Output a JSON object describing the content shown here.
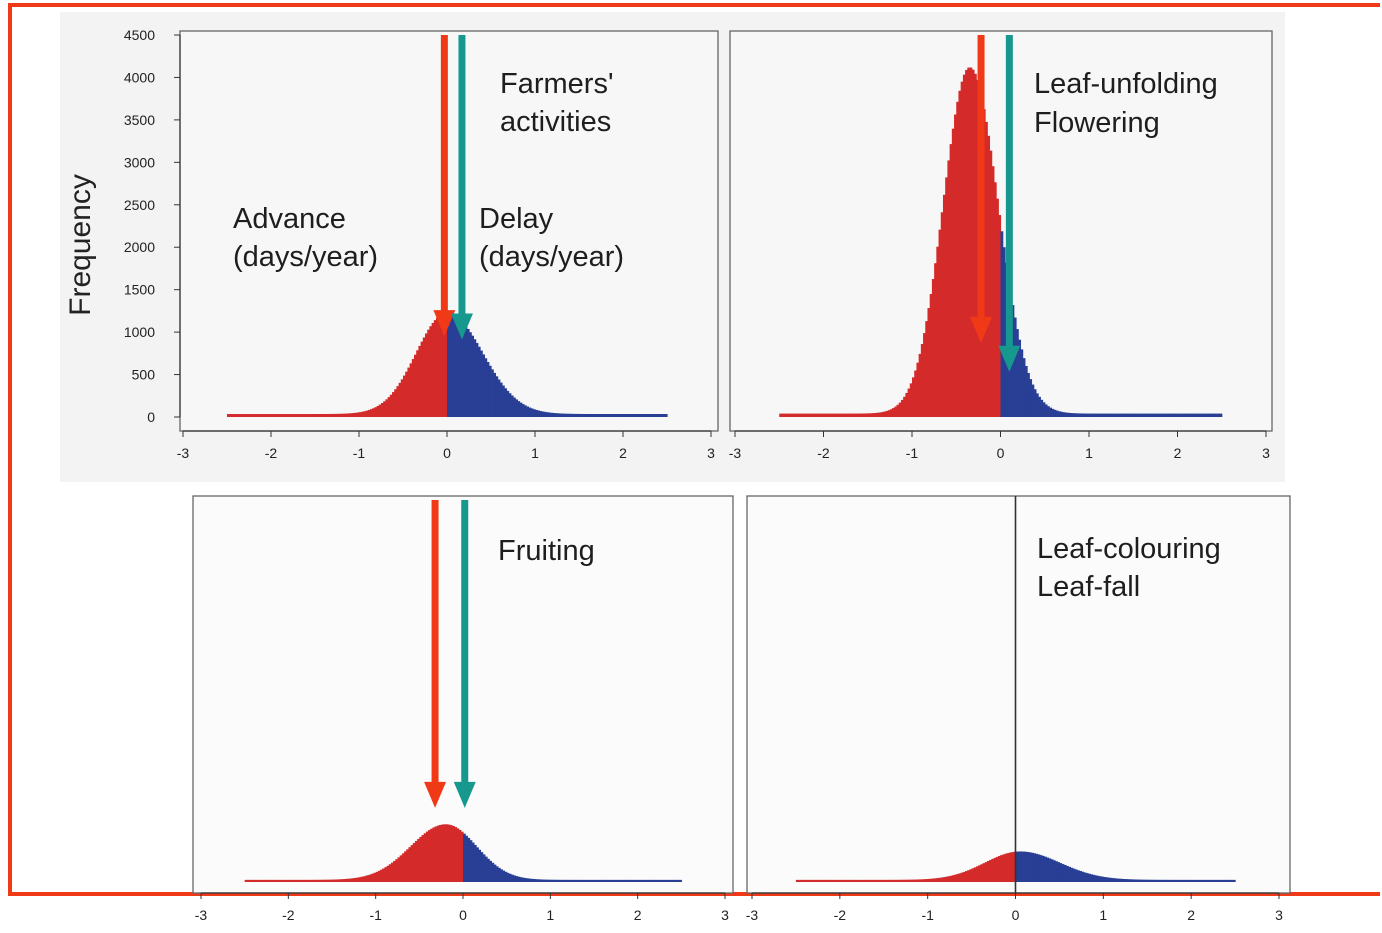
{
  "chart_data": [
    {
      "type": "bar",
      "panel": "top-left",
      "annotations": [
        "Farmers'",
        "activities"
      ],
      "x_ticks": [
        "-3",
        "-2",
        "-1",
        "0",
        "1",
        "2",
        "3"
      ],
      "y_ticks": [
        "0",
        "500",
        "1000",
        "1500",
        "2000",
        "2500",
        "3000",
        "3500",
        "4000",
        "4500"
      ],
      "ylabel": "Frequency",
      "xlim": [
        -3,
        3
      ],
      "ylim": [
        0,
        4500
      ],
      "range": [
        -2.5,
        2.5
      ],
      "peak_x": 0.0,
      "peak_y": 1230,
      "sigma_left": 0.35,
      "sigma_right": 0.4,
      "tail": 35,
      "x": [
        -2.5,
        -2.0,
        -1.5,
        -1.0,
        -0.5,
        -0.25,
        0.0,
        0.25,
        0.5,
        1.0,
        1.5,
        2.0,
        2.5
      ],
      "values": [
        40,
        50,
        80,
        280,
        830,
        1110,
        1230,
        1000,
        630,
        180,
        90,
        60,
        40
      ],
      "series": [
        {
          "name": "Advance (days/year)",
          "range": [
            -2.5,
            0.0
          ],
          "color": "#d42a2a"
        },
        {
          "name": "Delay (days/year)",
          "range": [
            0.0,
            2.5
          ],
          "color": "#283f95"
        }
      ],
      "labels": [
        {
          "lines": [
            "Advance",
            "(days/year)"
          ],
          "x": -2.4,
          "y": 2550
        },
        {
          "lines": [
            "Delay",
            "(days/year)"
          ],
          "x": 0.35,
          "y": 2550
        }
      ],
      "arrows": [
        {
          "x": -0.03,
          "y_from": 4500,
          "y_to": 1000,
          "color": "#f03a17"
        },
        {
          "x": 0.17,
          "y_from": 4500,
          "y_to": 960,
          "color": "#16988f"
        }
      ],
      "zero_line": false
    },
    {
      "type": "bar",
      "panel": "top-right",
      "annotations": [
        "Leaf-unfolding",
        "Flowering"
      ],
      "x_ticks": [
        "-3",
        "-2",
        "-1",
        "0",
        "1",
        "2",
        "3"
      ],
      "xlim": [
        -3,
        3
      ],
      "ylim": [
        0,
        4500
      ],
      "range": [
        -2.5,
        2.5
      ],
      "peak_x": -0.35,
      "peak_y": 4120,
      "sigma_left": 0.3,
      "sigma_right": 0.32,
      "tail": 40,
      "x": [
        -2.5,
        -1.5,
        -1.0,
        -0.6,
        -0.35,
        0.0,
        0.25,
        0.5,
        1.0,
        1.5,
        2.5
      ],
      "values": [
        45,
        100,
        700,
        2850,
        4120,
        2130,
        900,
        550,
        150,
        70,
        40
      ],
      "series": [
        {
          "name": "Advance (days/year)",
          "range": [
            -2.5,
            0.0
          ],
          "color": "#d42a2a"
        },
        {
          "name": "Delay (days/year)",
          "range": [
            0.0,
            2.5
          ],
          "color": "#283f95"
        }
      ],
      "arrows": [
        {
          "x": -0.22,
          "y_from": 4500,
          "y_to": 920,
          "color": "#f03a17"
        },
        {
          "x": 0.1,
          "y_from": 4500,
          "y_to": 580,
          "color": "#16988f"
        }
      ],
      "zero_line": false
    },
    {
      "type": "bar",
      "panel": "bottom-left",
      "annotations": [
        "Fruiting"
      ],
      "x_ticks": [
        "-3",
        "-2",
        "-1",
        "0",
        "1",
        "2",
        "3"
      ],
      "xlim": [
        -3,
        3
      ],
      "ylim": [
        0,
        4500
      ],
      "range": [
        -2.5,
        2.5
      ],
      "peak_x": -0.2,
      "peak_y": 680,
      "sigma_left": 0.4,
      "sigma_right": 0.35,
      "tail": 25,
      "x": [
        -2.5,
        -2.0,
        -1.0,
        -0.5,
        -0.2,
        0.0,
        0.25,
        0.5,
        1.0,
        2.0,
        2.5
      ],
      "values": [
        25,
        40,
        120,
        440,
        680,
        580,
        300,
        150,
        60,
        30,
        25
      ],
      "series": [
        {
          "name": "Advance (days/year)",
          "range": [
            -2.5,
            0.0
          ],
          "color": "#d42a2a"
        },
        {
          "name": "Delay (days/year)",
          "range": [
            0.0,
            2.5
          ],
          "color": "#283f95"
        }
      ],
      "arrows": [
        {
          "x": -0.32,
          "y_from": 4500,
          "y_to": 920,
          "color": "#f03a17"
        },
        {
          "x": 0.02,
          "y_from": 4500,
          "y_to": 920,
          "color": "#16988f"
        }
      ],
      "zero_line": false
    },
    {
      "type": "bar",
      "panel": "bottom-right",
      "annotations": [
        "Leaf-colouring",
        "Leaf-fall"
      ],
      "x_ticks": [
        "-3",
        "-2",
        "-1",
        "0",
        "1",
        "2",
        "3"
      ],
      "xlim": [
        -3,
        3
      ],
      "ylim": [
        0,
        4500
      ],
      "range": [
        -2.5,
        2.5
      ],
      "peak_x": 0.05,
      "peak_y": 360,
      "sigma_left": 0.4,
      "sigma_right": 0.45,
      "tail": 25,
      "x": [
        -2.5,
        -1.5,
        -1.0,
        -0.5,
        0.0,
        0.1,
        0.5,
        1.0,
        2.0,
        2.5
      ],
      "values": [
        25,
        40,
        70,
        190,
        330,
        360,
        240,
        90,
        35,
        25
      ],
      "series": [
        {
          "name": "Advance (days/year)",
          "range": [
            -2.5,
            0.0
          ],
          "color": "#d42a2a"
        },
        {
          "name": "Delay (days/year)",
          "range": [
            0.0,
            2.5
          ],
          "color": "#283f95"
        }
      ],
      "arrows": [],
      "zero_line": true
    }
  ]
}
